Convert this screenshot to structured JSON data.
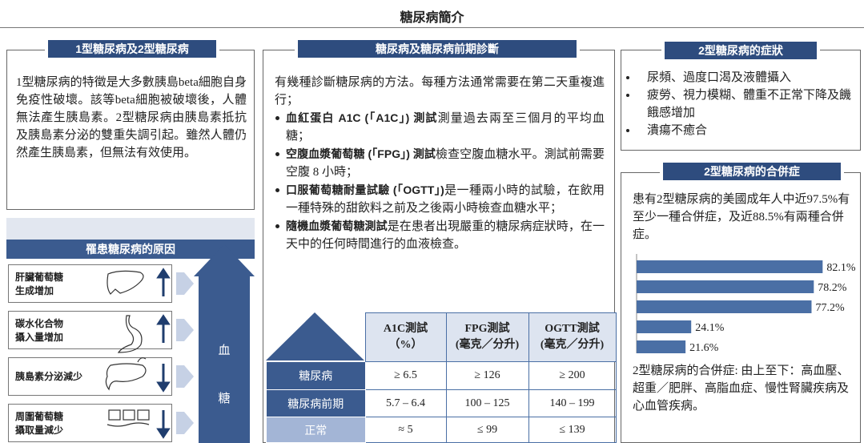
{
  "title": "糖尿病簡介",
  "type_section": {
    "heading": "1型糖尿病及2型糖尿病",
    "text": "1型糖尿病的特徵是大多數胰島beta細胞自身免疫性破壞。該等beta細胞被破壞後，人體無法產生胰島素。2型糖尿病由胰島素抵抗及胰島素分泌的雙重失調引起。雖然人體仍然產生胰島素，但無法有效使用。"
  },
  "causes": {
    "heading": "罹患糖尿病的原因",
    "items": [
      {
        "label": [
          "肝臟葡萄糖",
          "生成增加"
        ]
      },
      {
        "label": [
          "碳水化合物",
          "攝入量增加"
        ]
      },
      {
        "label": [
          "胰島素分泌減少"
        ]
      },
      {
        "label": [
          "周圍葡萄糖",
          "攝取量減少"
        ]
      }
    ],
    "result": [
      "血",
      "糖"
    ]
  },
  "diagnosis": {
    "heading": "糖尿病及糖尿病前期診斷",
    "intro": "有幾種診斷糖尿病的方法。每種方法通常需要在第二天重複進行；",
    "bullets": [
      {
        "bold": "血紅蛋白 A1C (「A1C」) 測試",
        "text": "測量過去兩至三個月的平均血糖；"
      },
      {
        "bold": "空腹血漿葡萄糖 (「FPG」) 測試",
        "text": "檢查空腹血糖水平。測試前需要空腹 8 小時；"
      },
      {
        "bold": "口服葡萄糖耐量試驗 (「OGTT」)",
        "text": "是一種兩小時的試驗，在飲用一種特殊的甜飲料之前及之後兩小時檢查血糖水平；"
      },
      {
        "bold": "隨機血漿葡萄糖測試",
        "text": "是在患者出現嚴重的糖尿病症狀時，在一天中的任何時間進行的血液檢查。"
      }
    ],
    "table": {
      "header": [
        [
          "A1C測試",
          "（%）"
        ],
        [
          "FPG測試",
          "(毫克／分升)"
        ],
        [
          "OGTT測試",
          "(毫克／分升)"
        ]
      ],
      "rows": [
        {
          "label": "糖尿病",
          "cells": [
            "≥ 6.5",
            "≥ 126",
            "≥ 200"
          ]
        },
        {
          "label": "糖尿病前期",
          "cells": [
            "5.7 – 6.4",
            "100 – 125",
            "140 – 199"
          ]
        },
        {
          "label": "正常",
          "cells": [
            "≈ 5",
            "≤ 99",
            "≤ 139"
          ]
        }
      ]
    }
  },
  "symptoms": {
    "heading": "2型糖尿病的症狀",
    "items": [
      "尿頻、過度口渴及液體攝入",
      "疲勞、視力模糊、體重不正常下降及饑餓感增加",
      "潰瘍不癒合"
    ]
  },
  "complications": {
    "heading": "2型糖尿病的合併症",
    "text": "患有2型糖尿病的美國成年人中近97.5%有至少一種合併症，及近88.5%有兩種合併症。",
    "chart": {
      "type": "bar",
      "orientation": "horizontal",
      "values": [
        82.1,
        78.2,
        77.2,
        24.1,
        21.6
      ],
      "value_labels": [
        "82.1%",
        "78.2%",
        "77.2%",
        "24.1%",
        "21.6%"
      ],
      "color": "#4a6fa5"
    },
    "caption": "2型糖尿病的合併症: 由上至下：高血壓、超重／肥胖、高脂血症、慢性腎臟疾病及心血管疾病。"
  }
}
